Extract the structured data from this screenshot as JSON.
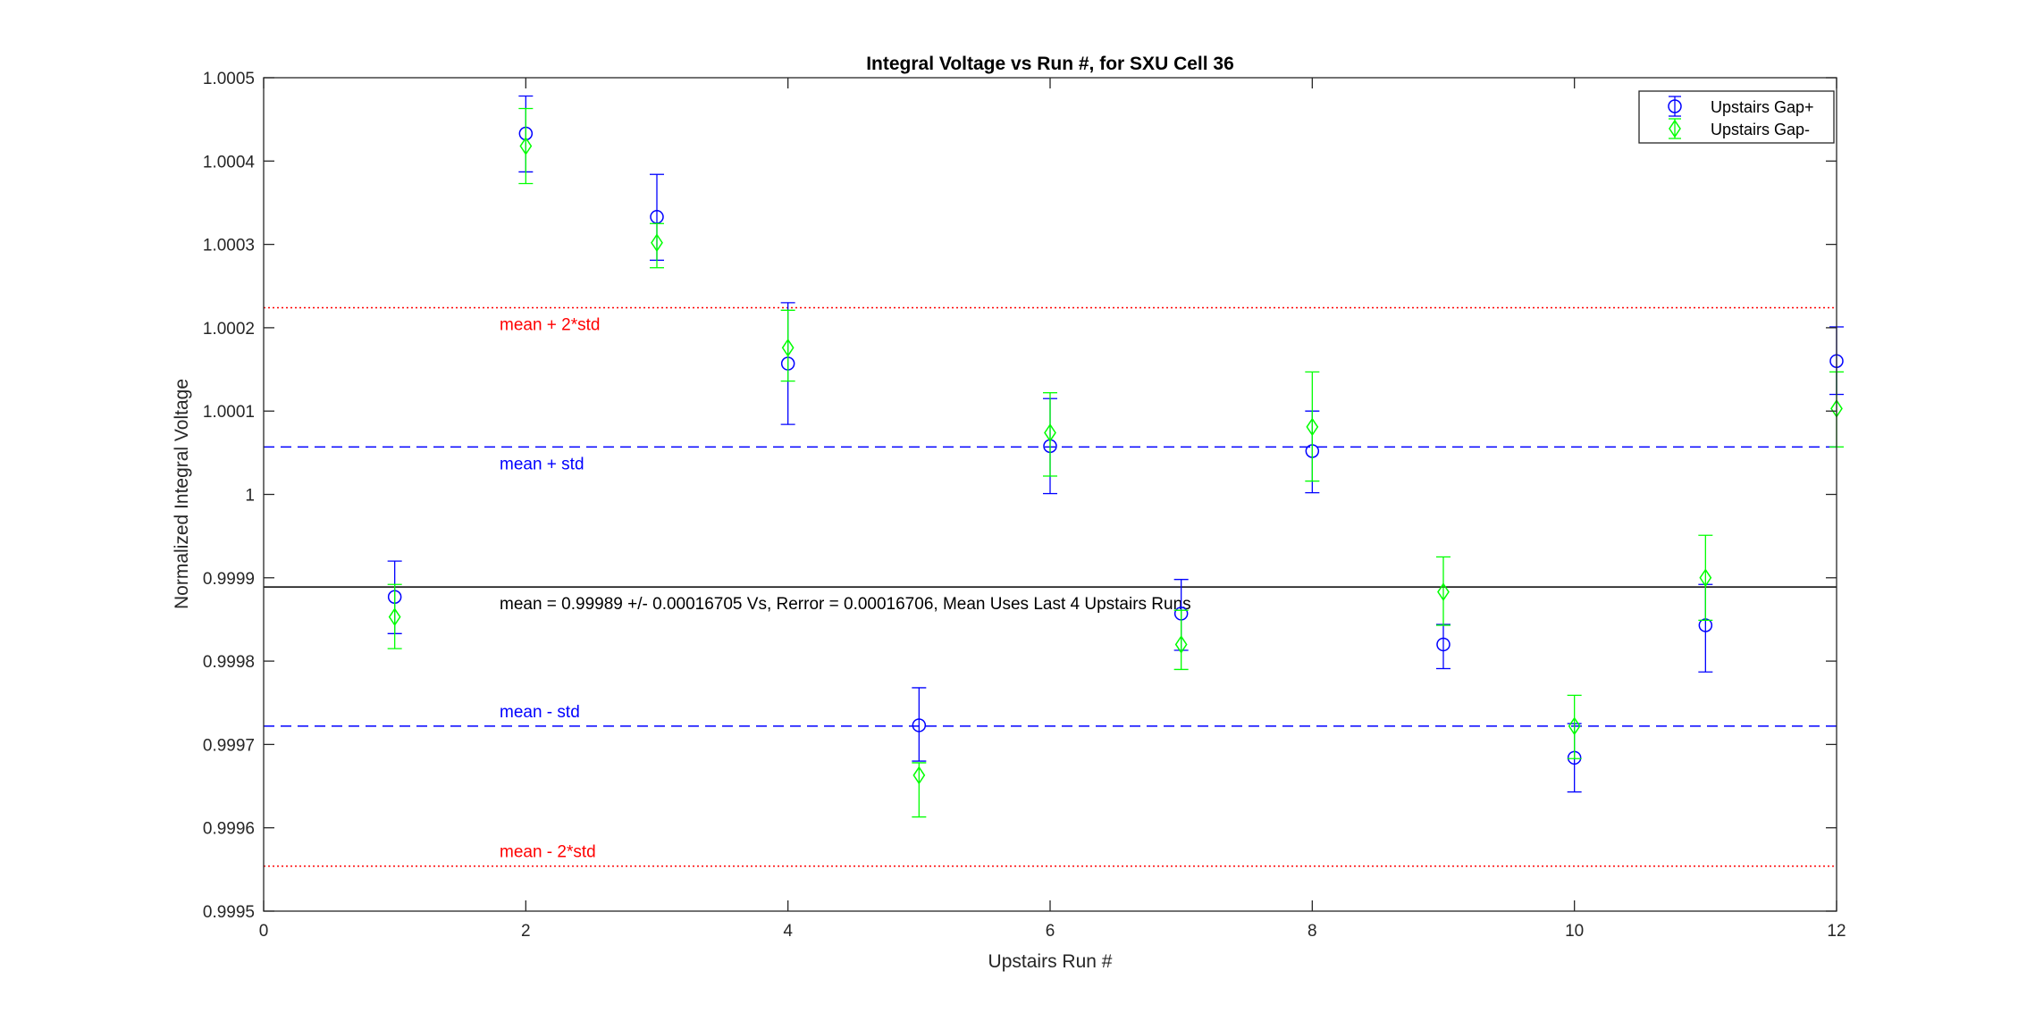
{
  "chart_data": {
    "type": "scatter",
    "title": "Integral Voltage vs Run #, for SXU Cell 36",
    "xlabel": "Upstairs Run #",
    "ylabel": "Normalized Integral Voltage",
    "xlim": [
      0,
      12
    ],
    "ylim": [
      0.9995,
      1.0005
    ],
    "xticks": [
      0,
      2,
      4,
      6,
      8,
      10,
      12
    ],
    "xtick_labels": [
      "0",
      "2",
      "4",
      "6",
      "8",
      "10",
      "12"
    ],
    "yticks": [
      0.9995,
      0.9996,
      0.9997,
      0.9998,
      0.9999,
      1.0,
      1.0001,
      1.0002,
      1.0003,
      1.0004,
      1.0005
    ],
    "ytick_labels": [
      "0.9995",
      "0.9996",
      "0.9997",
      "0.9998",
      "0.9999",
      "1",
      "1.0001",
      "1.0002",
      "1.0003",
      "1.0004",
      "1.0005"
    ],
    "grid": false,
    "legend_position": "top-right",
    "series": [
      {
        "name": "Upstairs Gap+",
        "color": "#0000ff",
        "marker": "circle",
        "x": [
          1,
          2,
          3,
          4,
          5,
          6,
          7,
          8,
          9,
          10,
          11,
          12
        ],
        "y": [
          0.999877,
          1.000433,
          1.000333,
          1.000157,
          0.999723,
          1.000058,
          0.999857,
          1.000052,
          0.99982,
          0.999684,
          0.999843,
          1.00016
        ],
        "err_low": [
          0.999833,
          1.000387,
          1.000281,
          1.000084,
          0.99968,
          1.000001,
          0.999813,
          1.000002,
          0.999791,
          0.999643,
          0.999787,
          1.00012
        ],
        "err_high": [
          0.99992,
          1.000478,
          1.000384,
          1.00023,
          0.999768,
          1.000115,
          0.999898,
          1.0001,
          0.999844,
          0.999725,
          0.999892,
          1.000201
        ]
      },
      {
        "name": "Upstairs Gap-",
        "color": "#00ff00",
        "marker": "diamond",
        "x": [
          1,
          2,
          3,
          4,
          5,
          6,
          7,
          8,
          9,
          10,
          11,
          12
        ],
        "y": [
          0.999853,
          1.000418,
          1.000302,
          1.000176,
          0.999663,
          1.000074,
          0.99982,
          1.000081,
          0.999883,
          0.999722,
          0.9999,
          1.000103
        ],
        "err_low": [
          0.999815,
          1.000373,
          1.000272,
          1.000136,
          0.999613,
          1.000022,
          0.99979,
          1.000016,
          0.999843,
          0.999683,
          0.999849,
          1.000057
        ],
        "err_high": [
          0.999892,
          1.000463,
          1.000325,
          1.000221,
          0.999678,
          1.000122,
          0.999861,
          1.000147,
          0.999925,
          0.999759,
          0.999951,
          1.000147
        ]
      }
    ],
    "reference_lines": [
      {
        "name": "mean",
        "value": 0.999889,
        "color": "#000000",
        "style": "solid",
        "label": "mean = 0.99989 +/- 0.00016705 Vs, Rerror = 0.00016706, Mean Uses Last 4 Upstairs Runs",
        "label_pos": "below"
      },
      {
        "name": "mean-plus-std",
        "value": 1.000057,
        "color": "#0000ff",
        "style": "dashed",
        "label": "mean + std",
        "label_pos": "below"
      },
      {
        "name": "mean-minus-std",
        "value": 0.999722,
        "color": "#0000ff",
        "style": "dashed",
        "label": "mean - std",
        "label_pos": "above"
      },
      {
        "name": "mean-plus-2std",
        "value": 1.000224,
        "color": "#ff0000",
        "style": "dotted",
        "label": "mean + 2*std",
        "label_pos": "below"
      },
      {
        "name": "mean-minus-2std",
        "value": 0.999554,
        "color": "#ff0000",
        "style": "dotted",
        "label": "mean - 2*std",
        "label_pos": "above"
      }
    ],
    "annotation_x": 1.8
  }
}
